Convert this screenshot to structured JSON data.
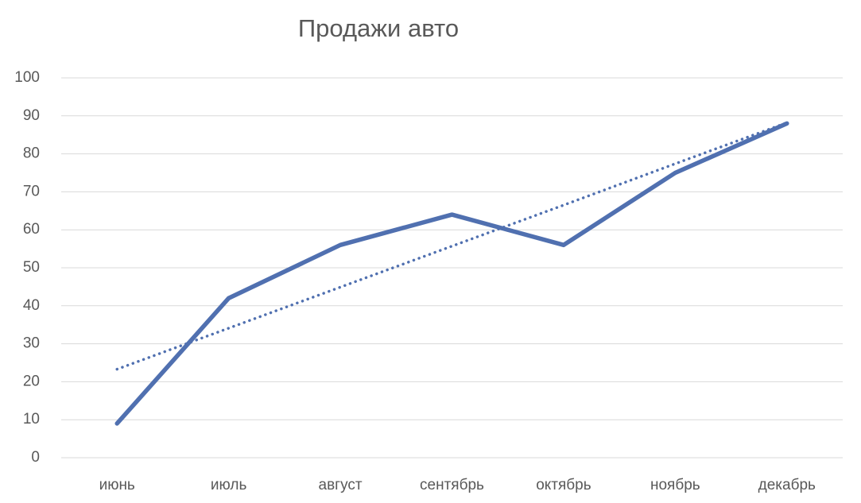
{
  "chart_data": {
    "type": "line",
    "title": "Продажи авто",
    "categories": [
      "июнь",
      "июль",
      "август",
      "сентябрь",
      "октябрь",
      "ноябрь",
      "декабрь"
    ],
    "series": [
      {
        "color": "#5070b0",
        "values": [
          9,
          42,
          56,
          64,
          56,
          75,
          88
        ]
      },
      {
        "color": "#5070b0",
        "dash": "dotted",
        "values": [
          23.3,
          34.1,
          44.9,
          55.7,
          66.5,
          77.4,
          88.2
        ]
      }
    ],
    "ylim": [
      0,
      100
    ],
    "yticks": [
      0,
      10,
      20,
      30,
      40,
      50,
      60,
      70,
      80,
      90,
      100
    ],
    "grid": true
  }
}
